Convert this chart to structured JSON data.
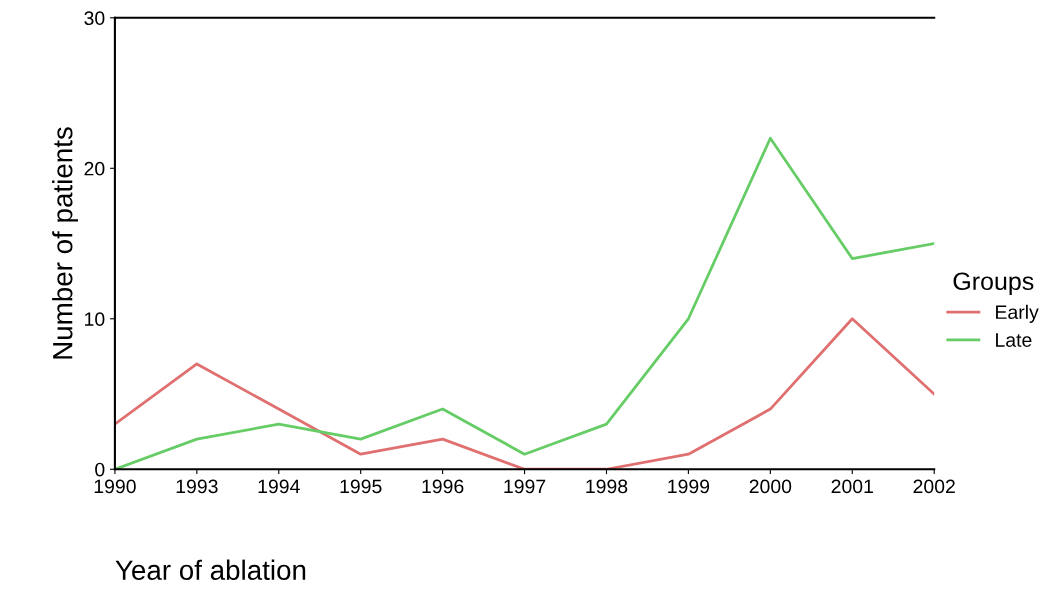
{
  "chart_data": {
    "type": "line",
    "xlabel": "Year of ablation",
    "ylabel": "Number of patients",
    "categories": [
      "1990",
      "1993",
      "1994",
      "1995",
      "1996",
      "1997",
      "1998",
      "1999",
      "2000",
      "2001",
      "2002"
    ],
    "series": [
      {
        "name": "Early",
        "color": "#e07070",
        "values": [
          3,
          7,
          4,
          1,
          2,
          0,
          0,
          1,
          4,
          10,
          5
        ]
      },
      {
        "name": "Late",
        "color": "#66cc66",
        "values": [
          0,
          2,
          3,
          2,
          4,
          1,
          3,
          10,
          22,
          14,
          15
        ]
      }
    ],
    "ylim": [
      0,
      30
    ],
    "yticks": [
      0,
      10,
      20,
      30
    ],
    "grid": false,
    "legend": "right",
    "legend_title": "Groups",
    "marker": "none",
    "line_style": "solid"
  }
}
